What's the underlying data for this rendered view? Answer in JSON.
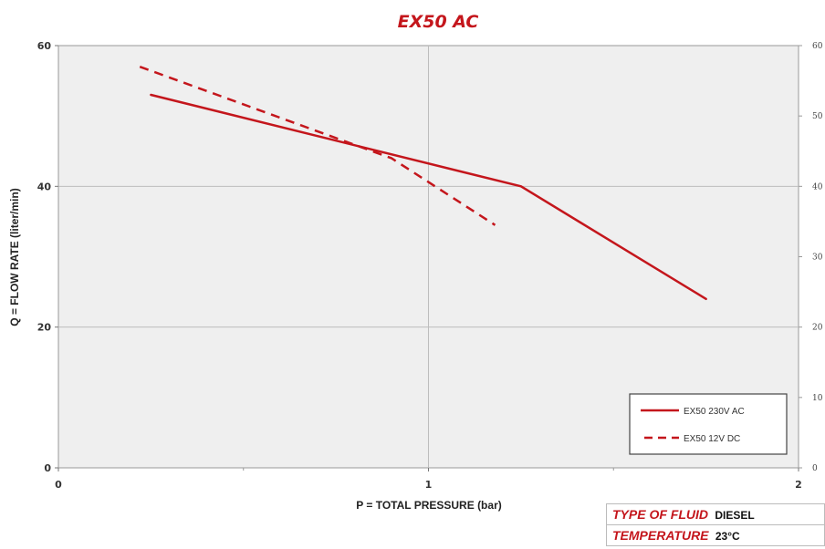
{
  "chart_data": {
    "type": "line",
    "title": "EX50 AC",
    "xlabel": "P = TOTAL PRESSURE (bar)",
    "ylabel": "Q = FLOW RATE (liter/min)",
    "xlim": [
      0,
      2
    ],
    "ylim": [
      0,
      60
    ],
    "xticks": [
      "0",
      "1",
      "2"
    ],
    "yticks": [
      "0",
      "20",
      "40",
      "60"
    ],
    "right_yticks": [
      "0",
      "10",
      "20",
      "30",
      "40",
      "50",
      "60"
    ],
    "grid": true,
    "legend_position": "bottom-right",
    "series": [
      {
        "name": "EX50 230V AC",
        "style": "solid",
        "color": "#c4161c",
        "x": [
          0.25,
          1.25,
          1.75
        ],
        "y": [
          53,
          40,
          24
        ]
      },
      {
        "name": "EX50 12V DC",
        "style": "dashed",
        "color": "#c4161c",
        "x": [
          0.22,
          0.9,
          1.18
        ],
        "y": [
          57,
          44,
          34.5
        ]
      }
    ]
  },
  "info_table": [
    {
      "label": "TYPE OF FLUID",
      "value": "DIESEL"
    },
    {
      "label": "TEMPERATURE",
      "value": "23°C"
    }
  ],
  "colors": {
    "accent": "#c4161c",
    "plot_background": "#efefef",
    "grid": "#bdbdbd"
  }
}
